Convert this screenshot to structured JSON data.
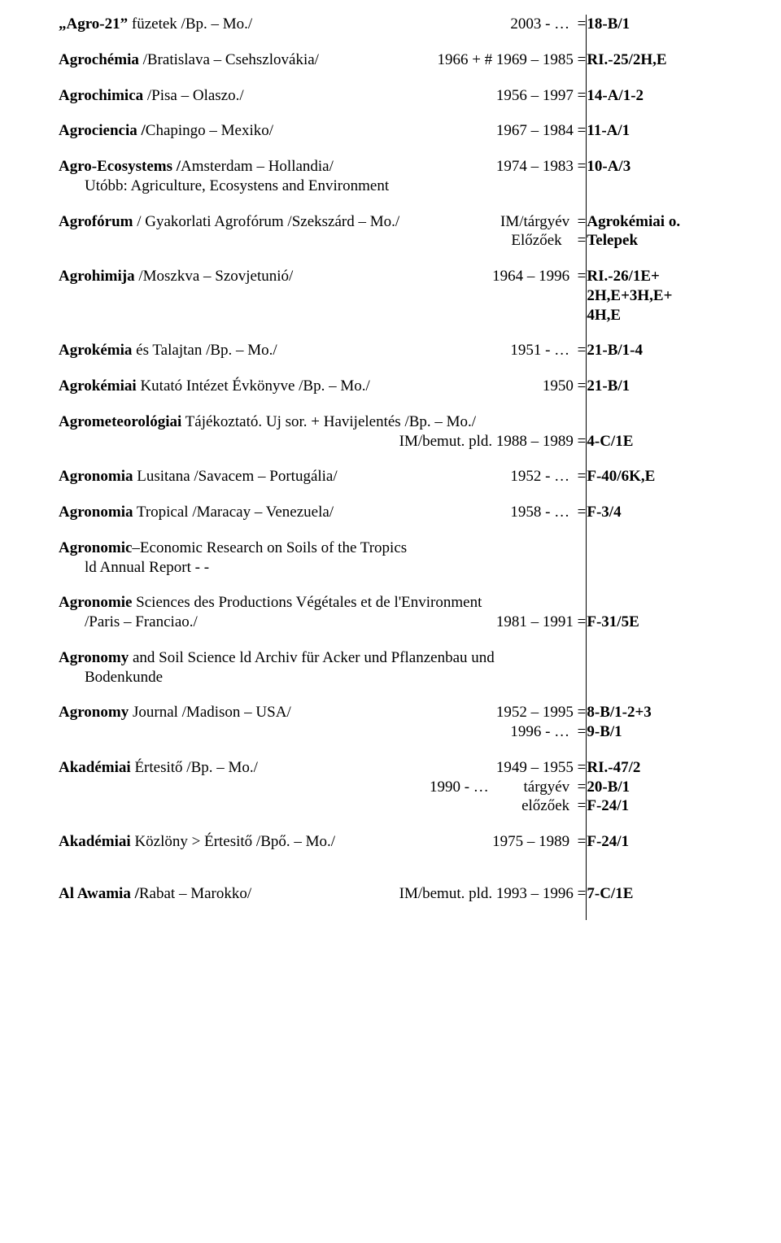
{
  "rows": [
    {
      "left": [
        {
          "label_html": "<span class='b'>„Agro-21”</span> füzetek  /Bp. – Mo./",
          "years": "2003 - …  ="
        }
      ],
      "right": [
        "18-B/1"
      ],
      "gap": "entry"
    },
    {
      "left": [
        {
          "label_html": "<span class='b'>Agrochémia</span>  /Bratislava – Csehszlovákia/",
          "years": "1966 + # 1969 – 1985 ="
        }
      ],
      "right": [
        "RI.-25/2H,E"
      ],
      "gap": "entry"
    },
    {
      "left": [
        {
          "label_html": "<span class='b'>Agrochimica</span>  /Pisa – Olaszo./",
          "years": "1956 – 1997 ="
        }
      ],
      "right": [
        "14-A/1-2"
      ],
      "gap": "entry"
    },
    {
      "left": [
        {
          "label_html": "<span class='b'>Agrociencia  /</span>Chapingo – Mexiko/",
          "years": "1967 – 1984 ="
        }
      ],
      "right": [
        "11-A/1"
      ],
      "gap": "entry"
    },
    {
      "left": [
        {
          "label_html": "<span class='b'>Agro-Ecosystems  /</span>Amsterdam – Hollandia/",
          "years": "1974 – 1983 ="
        },
        {
          "label_html": "Utóbb: Agriculture, Ecosystens and Environment",
          "years": "",
          "indent": "indent1"
        }
      ],
      "right": [
        "10-A/3"
      ],
      "gap": "entry"
    },
    {
      "left": [
        {
          "label_html": "<span class='b'>Agrofórum</span> / Gyakorlati Agrofórum  /Szekszárd – Mo./",
          "years": "IM/tárgyév  ="
        },
        {
          "label_html": "",
          "years": "Előzőek    ="
        }
      ],
      "right": [
        "Agrokémiai o.",
        "Telepek"
      ],
      "right_bold": true,
      "gap": "entry"
    },
    {
      "left": [
        {
          "label_html": "<span class='b'>Agrohimija</span>  /Moszkva – Szovjetunió/",
          "years": "1964 – 1996  ="
        }
      ],
      "right": [
        "RI.-26/1E+",
        "2H,E+3H,E+",
        "4H,E"
      ],
      "gap": "entry"
    },
    {
      "left": [
        {
          "label_html": "<span class='b'>Agrokémia</span> és Talajtan  /Bp. – Mo./",
          "years": "1951 - …  ="
        }
      ],
      "right": [
        "21-B/1-4"
      ],
      "gap": "entry"
    },
    {
      "left": [
        {
          "label_html": "<span class='b'>Agrokémiai</span> Kutató Intézet Évkönyve  /Bp. – Mo./",
          "years": "1950 ="
        }
      ],
      "right": [
        "21-B/1"
      ],
      "gap": "entry"
    },
    {
      "left": [
        {
          "label_html": "<span class='b'>Agrometeorológiai</span> Tájékoztató. Uj sor.  + Havijelentés    /Bp. – Mo./",
          "years": ""
        },
        {
          "label_html": "",
          "years": "IM/bemut. pld. 1988 – 1989 ="
        }
      ],
      "right": [
        "",
        "4-C/1E"
      ],
      "gap": "entry"
    },
    {
      "left": [
        {
          "label_html": "<span class='b'>Agronomia</span> Lusitana  /Savacem – Portugália/",
          "years": "1952 - …  ="
        }
      ],
      "right": [
        "F-40/6K,E"
      ],
      "gap": "entry"
    },
    {
      "left": [
        {
          "label_html": "<span class='b'>Agronomia</span> Tropical  /Maracay – Venezuela/",
          "years": "1958 - …  ="
        }
      ],
      "right": [
        "F-3/4"
      ],
      "gap": "entry"
    },
    {
      "left": [
        {
          "label_html": "<span class='b'>Agronomic</span>–Economic Research on Soils of the Tropics",
          "years": ""
        },
        {
          "label_html": "ld Annual Report - -",
          "years": "",
          "indent": "indent1"
        }
      ],
      "right": [
        ""
      ],
      "gap": "entry"
    },
    {
      "left": [
        {
          "label_html": "<span class='b'>Agronomie</span> Sciences des Productions Végétales et de l'Environment",
          "years": ""
        },
        {
          "label_html": "/Paris – Franciao./",
          "years": "1981 – 1991 =",
          "indent": "indent1"
        }
      ],
      "right": [
        "",
        "F-31/5E"
      ],
      "gap": "entry"
    },
    {
      "left": [
        {
          "label_html": "<span class='b'>Agronomy</span> and Soil Science  ld Archiv für Acker und Pflanzenbau und",
          "years": ""
        },
        {
          "label_html": "Bodenkunde",
          "years": "",
          "indent": "indent1"
        }
      ],
      "right": [
        ""
      ],
      "gap": "entry"
    },
    {
      "left": [
        {
          "label_html": "<span class='b'>Agronomy</span> Journal  /Madison – USA/",
          "years": "1952 – 1995 ="
        },
        {
          "label_html": "",
          "years": "1996 - …  ="
        }
      ],
      "right": [
        "8-B/1-2+3",
        "9-B/1"
      ],
      "gap": "entry"
    },
    {
      "left": [
        {
          "label_html": "<span class='b'>Akadémiai</span> Értesitő  /Bp. – Mo./",
          "years": "1949 – 1955 ="
        },
        {
          "label_html": "",
          "years": "1990 - …         tárgyév  ="
        },
        {
          "label_html": "",
          "years": "előzőek  ="
        }
      ],
      "right": [
        "RI.-47/2",
        "20-B/1",
        "F-24/1"
      ],
      "gap": "entry"
    },
    {
      "left": [
        {
          "label_html": "<span class='b'>Akadémiai</span> Közlöny > Értesitő  /Bpő. – Mo./",
          "years": "1975 – 1989  ="
        }
      ],
      "right": [
        "F-24/1"
      ],
      "gap": "big-gap"
    },
    {
      "left": [
        {
          "label_html": "<span class='b'>Al Awamia  /</span>Rabat – Marokko/",
          "years": "IM/bemut. pld. 1993 – 1996 ="
        }
      ],
      "right": [
        "7-C/1E"
      ],
      "gap": "entry"
    }
  ]
}
